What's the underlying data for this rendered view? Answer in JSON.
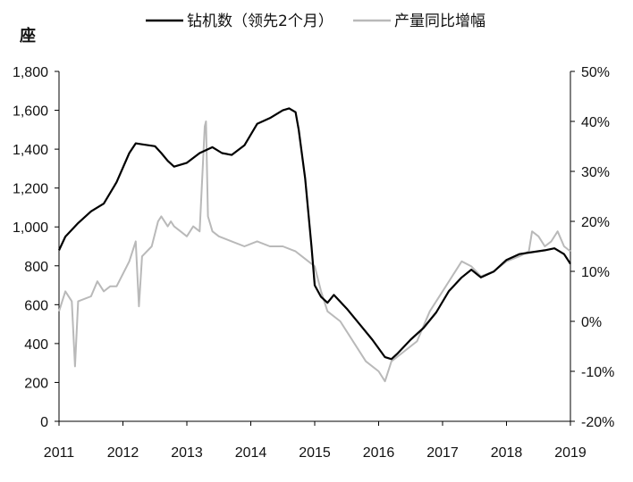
{
  "chart_data": {
    "type": "line",
    "left_axis_unit": "座",
    "xlim": [
      2011,
      2019
    ],
    "x_ticks": [
      "2011",
      "2012",
      "2013",
      "2014",
      "2015",
      "2016",
      "2017",
      "2018",
      "2019"
    ],
    "left_ylim": [
      0,
      1800
    ],
    "left_ticks": [
      "0",
      "200",
      "400",
      "600",
      "800",
      "1,000",
      "1,200",
      "1,400",
      "1,600",
      "1,800"
    ],
    "right_ylim": [
      -20,
      50
    ],
    "right_ticks": [
      "-20%",
      "-10%",
      "0%",
      "10%",
      "20%",
      "30%",
      "40%",
      "50%"
    ],
    "legend": {
      "placement": "top"
    },
    "series": [
      {
        "name": "钻机数（领先2个月）",
        "axis": "left",
        "color": "#000000",
        "x": [
          2011.0,
          2011.1,
          2011.3,
          2011.5,
          2011.7,
          2011.9,
          2012.1,
          2012.2,
          2012.3,
          2012.5,
          2012.6,
          2012.7,
          2012.8,
          2013.0,
          2013.2,
          2013.4,
          2013.55,
          2013.7,
          2013.9,
          2014.1,
          2014.3,
          2014.5,
          2014.6,
          2014.7,
          2014.75,
          2014.85,
          2014.95,
          2015.0,
          2015.1,
          2015.2,
          2015.3,
          2015.5,
          2015.7,
          2015.9,
          2016.1,
          2016.2,
          2016.3,
          2016.5,
          2016.7,
          2016.9,
          2017.1,
          2017.3,
          2017.45,
          2017.6,
          2017.8,
          2018.0,
          2018.2,
          2018.4,
          2018.6,
          2018.75,
          2018.9,
          2019.0
        ],
        "values": [
          880,
          950,
          1020,
          1080,
          1120,
          1230,
          1380,
          1430,
          1425,
          1415,
          1380,
          1340,
          1310,
          1330,
          1380,
          1410,
          1380,
          1370,
          1420,
          1530,
          1560,
          1600,
          1610,
          1590,
          1500,
          1250,
          900,
          700,
          640,
          610,
          650,
          580,
          500,
          420,
          330,
          320,
          350,
          420,
          480,
          560,
          670,
          740,
          780,
          740,
          770,
          830,
          860,
          870,
          880,
          890,
          860,
          810
        ]
      },
      {
        "name": "产量同比增幅",
        "axis": "right",
        "color": "#b9b9b9",
        "x": [
          2011.0,
          2011.1,
          2011.2,
          2011.25,
          2011.3,
          2011.5,
          2011.6,
          2011.7,
          2011.8,
          2011.9,
          2012.1,
          2012.2,
          2012.25,
          2012.3,
          2012.45,
          2012.55,
          2012.6,
          2012.7,
          2012.75,
          2012.8,
          2012.9,
          2013.0,
          2013.1,
          2013.2,
          2013.28,
          2013.3,
          2013.33,
          2013.4,
          2013.5,
          2013.7,
          2013.9,
          2014.1,
          2014.3,
          2014.5,
          2014.7,
          2014.9,
          2015.0,
          2015.1,
          2015.2,
          2015.4,
          2015.6,
          2015.8,
          2016.0,
          2016.1,
          2016.2,
          2016.4,
          2016.6,
          2016.8,
          2017.0,
          2017.15,
          2017.3,
          2017.45,
          2017.6,
          2017.8,
          2018.0,
          2018.2,
          2018.35,
          2018.4,
          2018.5,
          2018.6,
          2018.7,
          2018.8,
          2018.9,
          2019.0
        ],
        "values": [
          2,
          6,
          4,
          -9,
          4,
          5,
          8,
          6,
          7,
          7,
          12,
          16,
          3,
          13,
          15,
          20,
          21,
          19,
          20,
          19,
          18,
          17,
          19,
          18,
          39,
          40,
          21,
          18,
          17,
          16,
          15,
          16,
          15,
          15,
          14,
          12,
          11,
          6,
          2,
          0,
          -4,
          -8,
          -10,
          -12,
          -8,
          -6,
          -4,
          2,
          6,
          9,
          12,
          11,
          9,
          10,
          12,
          13,
          14,
          18,
          17,
          15,
          16,
          18,
          15,
          14
        ]
      }
    ]
  }
}
